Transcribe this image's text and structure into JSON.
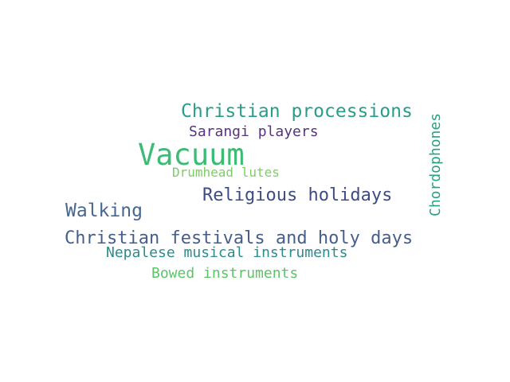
{
  "words": [
    {
      "text": "Vacuum",
      "color": "#3dbb75"
    },
    {
      "text": "Christian processions",
      "color": "#2a9d8a"
    },
    {
      "text": "Sarangi players",
      "color": "#55347f"
    },
    {
      "text": "Drumhead lutes",
      "color": "#79cf63"
    },
    {
      "text": "Religious holidays",
      "color": "#3e4c86"
    },
    {
      "text": "Walking",
      "color": "#486691"
    },
    {
      "text": "Christian festivals and holy days",
      "color": "#465e8c"
    },
    {
      "text": "Nepalese musical instruments",
      "color": "#2b8c8c"
    },
    {
      "text": "Bowed instruments",
      "color": "#5cc467"
    },
    {
      "text": "Chordophones",
      "color": "#27a184"
    }
  ]
}
